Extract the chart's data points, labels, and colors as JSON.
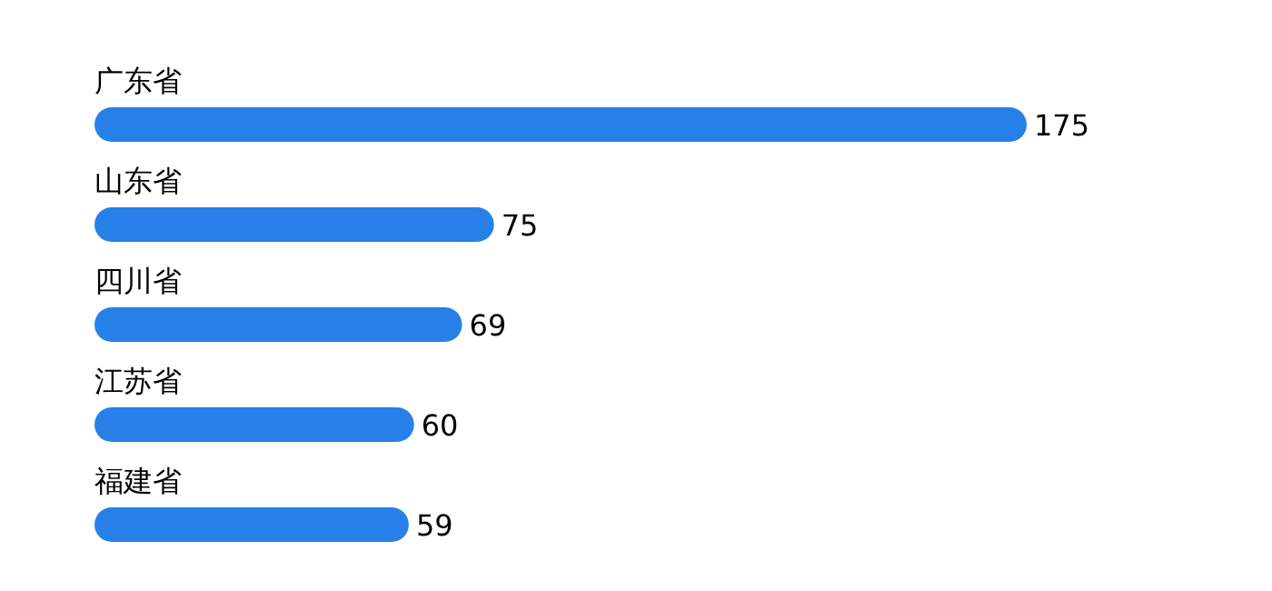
{
  "chart_data": {
    "type": "bar",
    "orientation": "horizontal",
    "categories": [
      "广东省",
      "山东省",
      "四川省",
      "江苏省",
      "福建省"
    ],
    "values": [
      175,
      75,
      69,
      60,
      59
    ],
    "color": "#2680e8",
    "data_labels": true
  }
}
